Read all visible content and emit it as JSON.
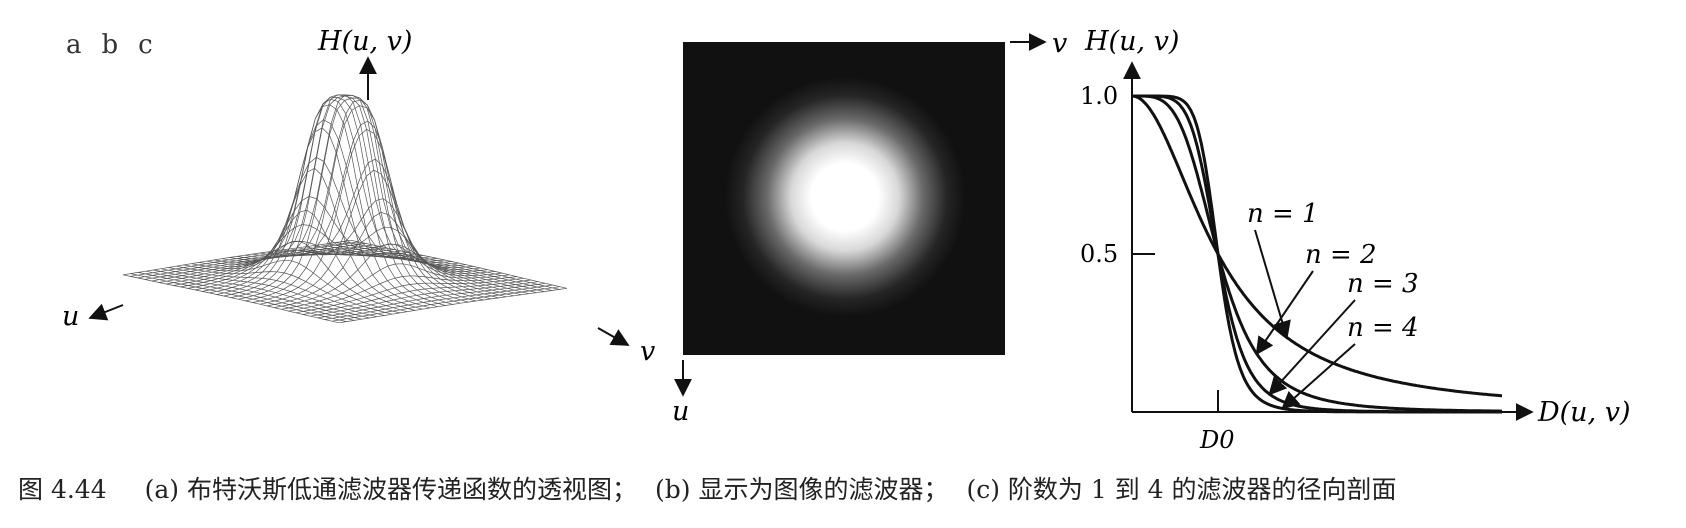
{
  "panel_letters": [
    "a",
    "b",
    "c"
  ],
  "panel_a": {
    "axis_top": "H(u, v)",
    "axis_left": "u",
    "axis_right": "v"
  },
  "panel_b": {
    "axis_right": "v",
    "axis_bottom": "u"
  },
  "chart_data": {
    "type": "line",
    "ylabel": "H(u, v)",
    "xlabel": "D(u, v)",
    "x_tick_labels": [
      "D0"
    ],
    "y_tick_labels": [
      "1.0",
      "0.5"
    ],
    "xlim": [
      0,
      3.2
    ],
    "ylim": [
      0,
      1.0
    ],
    "grid": false,
    "series": [
      {
        "name": "n = 1",
        "order": 1
      },
      {
        "name": "n = 2",
        "order": 2
      },
      {
        "name": "n = 3",
        "order": 3
      },
      {
        "name": "n = 4",
        "order": 4
      }
    ]
  },
  "caption": {
    "number": "图 4.44",
    "a": "(a) 布特沃斯低通滤波器传递函数的透视图；",
    "b": "(b) 显示为图像的滤波器；",
    "c": "(c) 阶数为 1 到 4 的滤波器的径向剖面"
  }
}
